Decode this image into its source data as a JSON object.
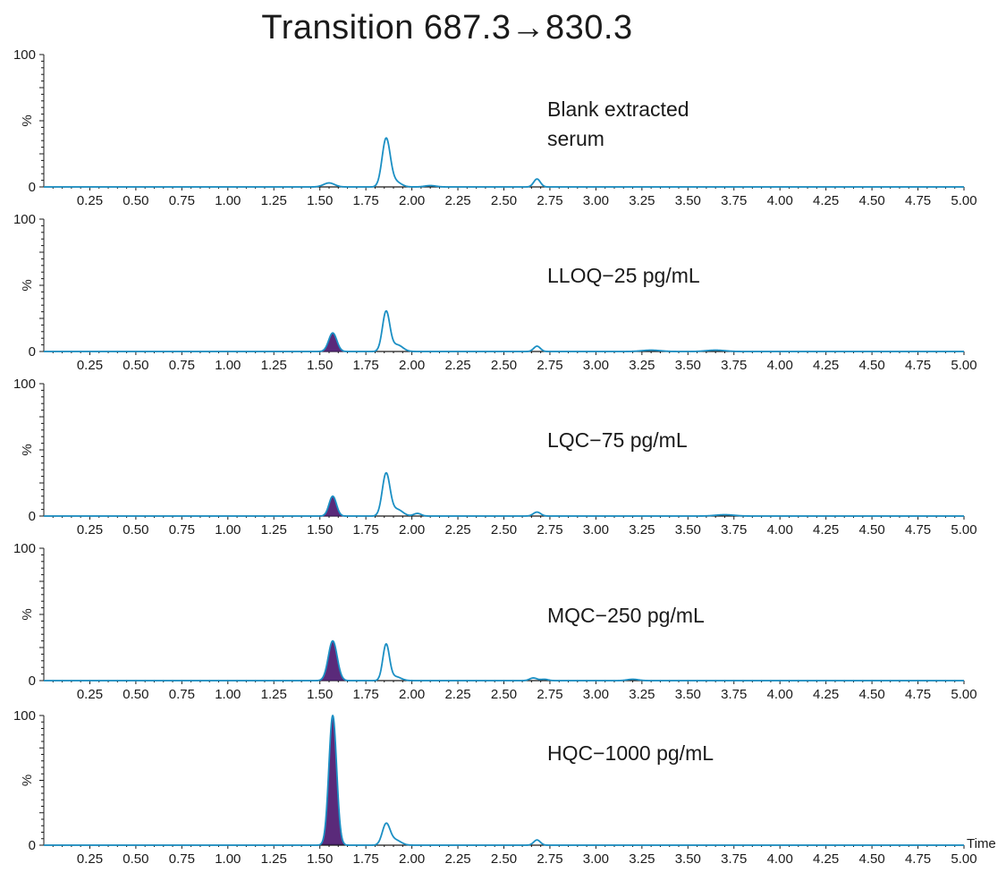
{
  "chart_data": {
    "type": "line",
    "title": "Transition 687.3→830.3",
    "xlabel": "Time",
    "ylabel": "%",
    "xlim": [
      0,
      5
    ],
    "ylim": [
      0,
      100
    ],
    "x_ticks": [
      "0.25",
      "0.50",
      "0.75",
      "1.00",
      "1.25",
      "1.50",
      "1.75",
      "2.00",
      "2.25",
      "2.50",
      "2.75",
      "3.00",
      "3.25",
      "3.50",
      "3.75",
      "4.00",
      "4.25",
      "4.50",
      "4.75",
      "5.00"
    ],
    "y_ticks": [
      "0",
      "%",
      "100"
    ],
    "line_color": "#1b8fc4",
    "fill_color": "#5a2a7a",
    "panels": [
      {
        "label_lines": [
          "Blank extracted",
          "serum"
        ],
        "analyte_peak": null,
        "peaks": [
          {
            "t": 1.55,
            "h": 3,
            "w": 0.03
          },
          {
            "t": 1.86,
            "h": 36,
            "w": 0.022
          },
          {
            "t": 1.91,
            "h": 4,
            "w": 0.03
          },
          {
            "t": 2.1,
            "h": 1,
            "w": 0.03
          },
          {
            "t": 2.68,
            "h": 6,
            "w": 0.018
          }
        ]
      },
      {
        "label_lines": [
          "LLOQ−25 pg/mL"
        ],
        "analyte_peak": {
          "t": 1.57,
          "h": 14,
          "w": 0.022
        },
        "peaks": [
          {
            "t": 1.86,
            "h": 30,
            "w": 0.02
          },
          {
            "t": 1.92,
            "h": 5,
            "w": 0.03
          },
          {
            "t": 2.68,
            "h": 4,
            "w": 0.018
          },
          {
            "t": 3.3,
            "h": 1,
            "w": 0.05
          },
          {
            "t": 3.65,
            "h": 1,
            "w": 0.05
          }
        ]
      },
      {
        "label_lines": [
          "LQC−75 pg/mL"
        ],
        "analyte_peak": {
          "t": 1.57,
          "h": 15,
          "w": 0.02
        },
        "peaks": [
          {
            "t": 1.86,
            "h": 32,
            "w": 0.021
          },
          {
            "t": 1.92,
            "h": 5,
            "w": 0.03
          },
          {
            "t": 2.03,
            "h": 2,
            "w": 0.02
          },
          {
            "t": 2.68,
            "h": 3,
            "w": 0.02
          },
          {
            "t": 3.7,
            "h": 1,
            "w": 0.05
          }
        ]
      },
      {
        "label_lines": [
          "MQC−250 pg/mL"
        ],
        "analyte_peak": {
          "t": 1.57,
          "h": 30,
          "w": 0.024
        },
        "peaks": [
          {
            "t": 1.86,
            "h": 27,
            "w": 0.018
          },
          {
            "t": 1.91,
            "h": 3,
            "w": 0.03
          },
          {
            "t": 2.66,
            "h": 2,
            "w": 0.02
          },
          {
            "t": 2.72,
            "h": 1,
            "w": 0.02
          },
          {
            "t": 3.2,
            "h": 1,
            "w": 0.03
          }
        ]
      },
      {
        "label_lines": [
          "HQC−1000 pg/mL"
        ],
        "analyte_peak": {
          "t": 1.57,
          "h": 100,
          "w": 0.021
        },
        "peaks": [
          {
            "t": 1.86,
            "h": 16,
            "w": 0.021
          },
          {
            "t": 1.91,
            "h": 4,
            "w": 0.03
          },
          {
            "t": 2.68,
            "h": 4,
            "w": 0.018
          }
        ]
      }
    ]
  }
}
